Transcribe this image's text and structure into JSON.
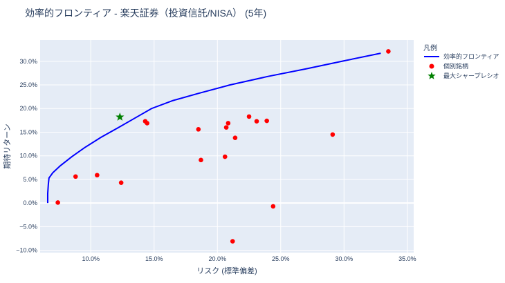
{
  "chart_data": {
    "type": "scatter",
    "title": "効率的フロンティア - 楽天証券（投資信託/NISA） (5年)",
    "xlabel": "リスク (標準偏差)",
    "ylabel": "期待リターン",
    "xlim": [
      6.0,
      35.5
    ],
    "ylim": [
      -10.5,
      34.5
    ],
    "x_ticks": [
      10,
      15,
      20,
      25,
      30,
      35
    ],
    "x_tick_labels": [
      "10.0%",
      "15.0%",
      "20.0%",
      "25.0%",
      "30.0%",
      "35.0%"
    ],
    "y_ticks": [
      -10,
      -5,
      0,
      5,
      10,
      15,
      20,
      25,
      30
    ],
    "y_tick_labels": [
      "−10.0%",
      "−5.0%",
      "0.0%",
      "5.0%",
      "10.0%",
      "15.0%",
      "20.0%",
      "25.0%",
      "30.0%"
    ],
    "grid": true,
    "legend": {
      "title": "凡例",
      "placement": "right",
      "entries": [
        "効率的フロンティア",
        "個別銘柄",
        "最大シャープレシオ"
      ]
    },
    "colors": {
      "plot_bg": "#e5ecf6",
      "grid": "#ffffff",
      "frontier": "#0000ff",
      "assets": "#ff0000",
      "max_sharpe": "#008000",
      "text": "#2a3f5f"
    },
    "series": [
      {
        "name": "効率的フロンティア",
        "type": "line",
        "points": [
          [
            6.6,
            0.0
          ],
          [
            6.6,
            2.0
          ],
          [
            6.65,
            4.0
          ],
          [
            6.7,
            5.3
          ],
          [
            7.0,
            6.4
          ],
          [
            7.6,
            7.9
          ],
          [
            8.5,
            9.8
          ],
          [
            9.5,
            11.7
          ],
          [
            10.8,
            13.9
          ],
          [
            12.2,
            16.0
          ],
          [
            13.5,
            18.0
          ],
          [
            14.8,
            20.0
          ],
          [
            16.5,
            21.7
          ],
          [
            18.5,
            23.2
          ],
          [
            21.0,
            25.0
          ],
          [
            24.0,
            26.8
          ],
          [
            27.0,
            28.4
          ],
          [
            30.0,
            30.1
          ],
          [
            32.9,
            31.7
          ]
        ]
      },
      {
        "name": "個別銘柄",
        "type": "scatter",
        "points": [
          [
            7.4,
            0.1
          ],
          [
            8.8,
            5.6
          ],
          [
            10.5,
            5.9
          ],
          [
            12.4,
            4.3
          ],
          [
            14.3,
            17.3
          ],
          [
            14.45,
            16.9
          ],
          [
            18.5,
            15.6
          ],
          [
            18.7,
            9.1
          ],
          [
            20.6,
            9.8
          ],
          [
            20.7,
            16.0
          ],
          [
            20.85,
            16.9
          ],
          [
            21.2,
            -8.1
          ],
          [
            21.4,
            13.8
          ],
          [
            22.5,
            18.3
          ],
          [
            23.1,
            17.3
          ],
          [
            23.9,
            17.4
          ],
          [
            24.4,
            -0.7
          ],
          [
            29.1,
            14.5
          ],
          [
            33.5,
            32.1
          ]
        ]
      },
      {
        "name": "最大シャープレシオ",
        "type": "scatter",
        "points": [
          [
            12.3,
            18.2
          ]
        ]
      }
    ]
  }
}
